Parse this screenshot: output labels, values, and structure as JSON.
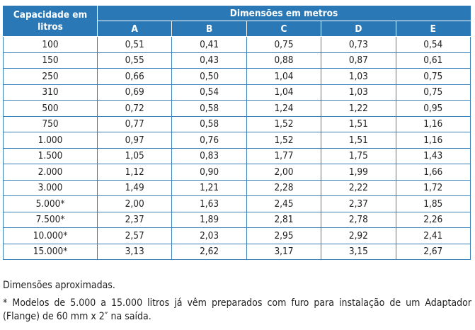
{
  "table": {
    "capacity_header": "Capacidade em litros",
    "group_header": "Dimensões em metros",
    "columns": [
      "A",
      "B",
      "C",
      "D",
      "E"
    ],
    "rows": [
      {
        "cap": "100",
        "v": [
          "0,51",
          "0,41",
          "0,75",
          "0,73",
          "0,54"
        ]
      },
      {
        "cap": "150",
        "v": [
          "0,55",
          "0,43",
          "0,88",
          "0,87",
          "0,61"
        ]
      },
      {
        "cap": "250",
        "v": [
          "0,66",
          "0,50",
          "1,04",
          "1,03",
          "0,75"
        ]
      },
      {
        "cap": "310",
        "v": [
          "0,69",
          "0,54",
          "1,04",
          "1,03",
          "0,75"
        ]
      },
      {
        "cap": "500",
        "v": [
          "0,72",
          "0,58",
          "1,24",
          "1,22",
          "0,95"
        ]
      },
      {
        "cap": "750",
        "v": [
          "0,77",
          "0,58",
          "1,52",
          "1,51",
          "1,16"
        ]
      },
      {
        "cap": "1.000",
        "v": [
          "0,97",
          "0,76",
          "1,52",
          "1,51",
          "1,16"
        ]
      },
      {
        "cap": "1.500",
        "v": [
          "1,05",
          "0,83",
          "1,77",
          "1,75",
          "1,43"
        ]
      },
      {
        "cap": "2.000",
        "v": [
          "1,12",
          "0,90",
          "2,00",
          "1,99",
          "1,66"
        ]
      },
      {
        "cap": "3.000",
        "v": [
          "1,49",
          "1,21",
          "2,28",
          "2,22",
          "1,72"
        ]
      },
      {
        "cap": "5.000*",
        "v": [
          "2,00",
          "1,63",
          "2,45",
          "2,37",
          "1,85"
        ]
      },
      {
        "cap": "7.500*",
        "v": [
          "2,37",
          "1,89",
          "2,81",
          "2,78",
          "2,26"
        ]
      },
      {
        "cap": "10.000*",
        "v": [
          "2,57",
          "2,03",
          "2,95",
          "2,92",
          "2,41"
        ]
      },
      {
        "cap": "15.000*",
        "v": [
          "3,13",
          "2,62",
          "3,17",
          "3,15",
          "2,67"
        ]
      }
    ]
  },
  "notes": {
    "approx": "Dimensões aproximadas.",
    "footnote": "* Modelos de 5.000 a 15.000 litros já vêm preparados com furo para instalação de um Adaptador (Flange) de 60 mm x 2″ na saída."
  },
  "colors": {
    "header_bg": "#2b78b6",
    "border": "#3a7fb8"
  }
}
